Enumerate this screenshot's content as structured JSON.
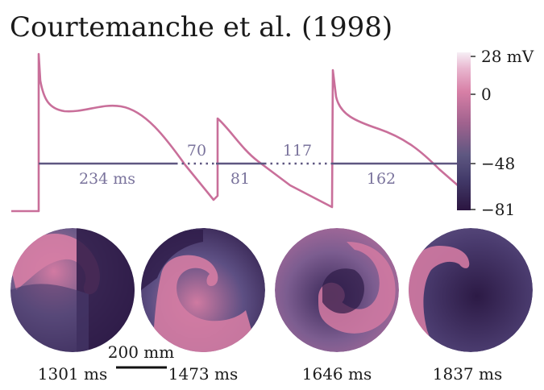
{
  "title": "Courtemanche et al.  (1998)",
  "colorbar": {
    "ticks": [
      "28 mV",
      "0",
      "−48",
      "−81"
    ],
    "tick_values_mV": [
      28,
      0,
      -48,
      -81
    ]
  },
  "trace": {
    "apd_labels": [
      "234 ms",
      "81",
      "162"
    ],
    "di_labels": [
      "70",
      "117"
    ],
    "trace_color": "#c96f9a",
    "line_color": "#5e5781"
  },
  "snapshots": {
    "times": [
      "1301 ms",
      "1473 ms",
      "1646 ms",
      "1837 ms"
    ]
  },
  "scale_bar": {
    "label": "200 mm"
  }
}
